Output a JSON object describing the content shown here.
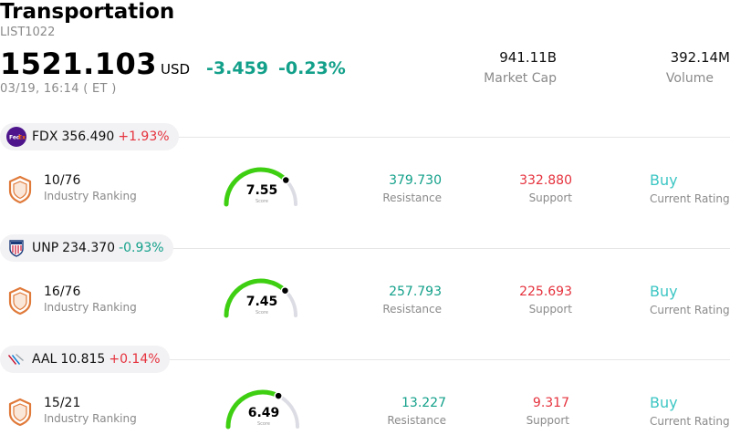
{
  "header": {
    "title": "Transportation",
    "code": "LIST1022",
    "price": "1521.103",
    "currency": "USD",
    "change": "-3.459",
    "change_pct": "-0.23%",
    "time": "03/19, 16:14 ( ET )",
    "market_cap_value": "941.11B",
    "market_cap_label": "Market Cap",
    "volume_value": "392.14M",
    "volume_label": "Volume"
  },
  "stocks": [
    {
      "symbol": "FDX",
      "price": "356.490",
      "change_pct": "+1.93%",
      "direction": "up",
      "logo_icon": "fedex-logo-icon",
      "logo_text": "FedEx",
      "rank": "10/76",
      "rank_label": "Industry Ranking",
      "score": "7.55",
      "score_fraction": 0.755,
      "score_label": "Score",
      "resistance": "379.730",
      "resistance_label": "Resistance",
      "support": "332.880",
      "support_label": "Support",
      "rating": "Buy",
      "rating_label": "Current Rating"
    },
    {
      "symbol": "UNP",
      "price": "234.370",
      "change_pct": "-0.93%",
      "direction": "down",
      "logo_icon": "union-pacific-shield-icon",
      "logo_text": "",
      "rank": "16/76",
      "rank_label": "Industry Ranking",
      "score": "7.45",
      "score_fraction": 0.745,
      "score_label": "Score",
      "resistance": "257.793",
      "resistance_label": "Resistance",
      "support": "225.693",
      "support_label": "Support",
      "rating": "Buy",
      "rating_label": "Current Rating"
    },
    {
      "symbol": "AAL",
      "price": "10.815",
      "change_pct": "+0.14%",
      "direction": "up",
      "logo_icon": "american-airlines-logo-icon",
      "logo_text": "",
      "rank": "15/21",
      "rank_label": "Industry Ranking",
      "score": "6.49",
      "score_fraction": 0.649,
      "score_label": "Score",
      "resistance": "13.227",
      "resistance_label": "Resistance",
      "support": "9.317",
      "support_label": "Support",
      "rating": "Buy",
      "rating_label": "Current Rating"
    }
  ],
  "colors": {
    "up": "#e5323d",
    "down": "#13a08a",
    "gauge_fill": "#3fcf12",
    "gauge_track": "#dcdce4",
    "rating": "#3cc6c4",
    "badge": "#e07a3a"
  }
}
